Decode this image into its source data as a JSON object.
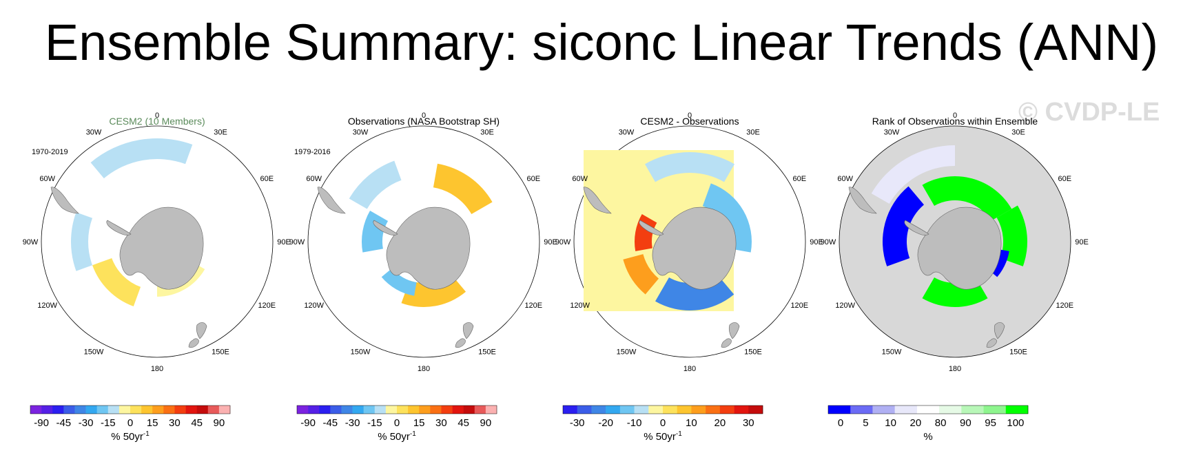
{
  "title": "Ensemble Summary: siconc Linear Trends (ANN)",
  "watermark": "© CVDP-LE",
  "lon_labels": [
    "0",
    "30E",
    "60E",
    "90E",
    "120E",
    "150E",
    "180",
    "150W",
    "120W",
    "90W",
    "60W",
    "30W"
  ],
  "colors": {
    "land": "#bdbdbd",
    "ocean_gray": "#d8d8d8",
    "trend_scale": [
      "#7b23e0",
      "#5520e6",
      "#2b1ff0",
      "#3b5de8",
      "#3f86e6",
      "#33a8f0",
      "#6fc6f2",
      "#b8e0f4",
      "#fdf6a0",
      "#fde25c",
      "#fdc52f",
      "#fd9e1d",
      "#fa7014",
      "#f33e10",
      "#e2150f",
      "#c40c0c",
      "#e85a5a",
      "#fbb1b1"
    ],
    "rank_scale": [
      "#0000ff",
      "#6b6bf5",
      "#b0b0f3",
      "#e8e8fa",
      "#ffffff",
      "#e6fae6",
      "#b8f7b8",
      "#8ef58e",
      "#00ff00"
    ]
  },
  "panels": [
    {
      "title": "CESM2 (10 Members)",
      "period": "1970-2019",
      "colorbar": {
        "labels": [
          "-90",
          "-45",
          "-30",
          "-15",
          "0",
          "15",
          "30",
          "45",
          "90"
        ],
        "unit": "% 50yr",
        "unit_sup": "-1"
      }
    },
    {
      "title": "Observations (NASA Bootstrap SH)",
      "period": "1979-2016",
      "colorbar": {
        "labels": [
          "-90",
          "-45",
          "-30",
          "-15",
          "0",
          "15",
          "30",
          "45",
          "90"
        ],
        "unit": "% 50yr",
        "unit_sup": "-1"
      }
    },
    {
      "title": "CESM2 - Observations",
      "period": "",
      "colorbar": {
        "labels": [
          "-30",
          "-20",
          "-10",
          "0",
          "10",
          "20",
          "30"
        ],
        "unit": "% 50yr",
        "unit_sup": "-1"
      }
    },
    {
      "title": "Rank of Observations within Ensemble",
      "period": "",
      "colorbar": {
        "labels": [
          "0",
          "5",
          "10",
          "20",
          "80",
          "90",
          "95",
          "100"
        ],
        "unit": "%",
        "unit_sup": ""
      }
    }
  ]
}
